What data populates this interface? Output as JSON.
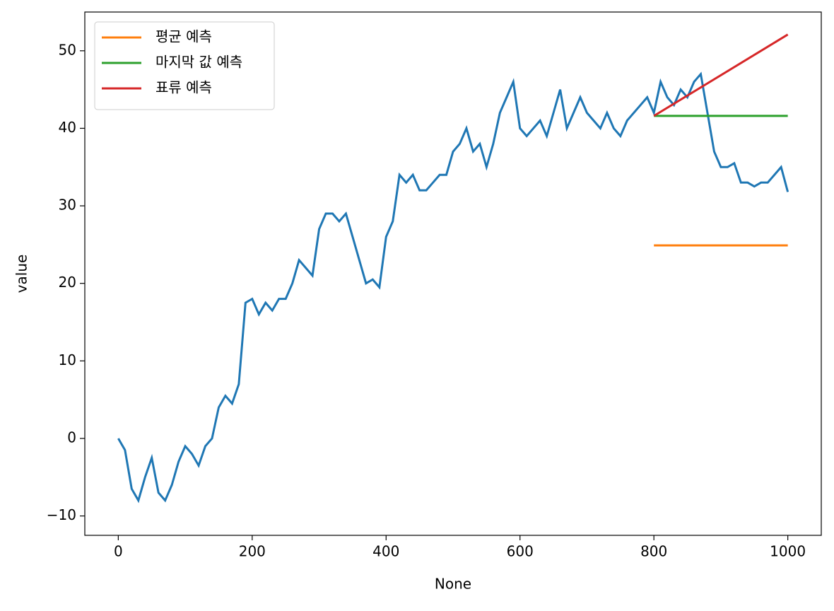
{
  "chart_data": {
    "type": "line",
    "x_label": "None",
    "y_label": "value",
    "xlim": [
      -50,
      1050
    ],
    "ylim": [
      -12.5,
      55
    ],
    "xticks": [
      0,
      200,
      400,
      600,
      800,
      1000
    ],
    "yticks": [
      {
        "value": -10,
        "label": "−10"
      },
      0,
      10,
      20,
      30,
      40,
      50
    ],
    "grid": false,
    "legend": "upper-left",
    "series": [
      {
        "color": "#1f77b4",
        "x": [
          0,
          10,
          20,
          30,
          40,
          50,
          60,
          70,
          80,
          90,
          100,
          110,
          120,
          130,
          140,
          150,
          160,
          170,
          180,
          190,
          200,
          210,
          220,
          230,
          240,
          250,
          260,
          270,
          280,
          290,
          300,
          310,
          320,
          330,
          340,
          350,
          360,
          370,
          380,
          390,
          400,
          410,
          420,
          430,
          440,
          450,
          460,
          470,
          480,
          490,
          500,
          510,
          520,
          530,
          540,
          550,
          560,
          570,
          580,
          590,
          600,
          610,
          620,
          630,
          640,
          650,
          660,
          670,
          680,
          690,
          700,
          710,
          720,
          730,
          740,
          750,
          760,
          770,
          780,
          790,
          800,
          810,
          820,
          830,
          840,
          850,
          860,
          870,
          880,
          890,
          900,
          910,
          920,
          930,
          940,
          950,
          960,
          970,
          980,
          990,
          1000
        ],
        "values": [
          0,
          -1.5,
          -6.5,
          -8,
          -5,
          -2.5,
          -7,
          -8,
          -6,
          -3,
          -1,
          -2,
          -3.5,
          -1,
          0,
          4,
          5.5,
          4.5,
          7,
          17.5,
          18,
          16,
          17.5,
          16.5,
          18,
          18,
          20,
          23,
          22,
          21,
          27,
          29,
          29,
          28,
          29,
          26,
          23,
          20,
          20.5,
          19.5,
          26,
          28,
          34,
          33,
          34,
          32,
          32,
          33,
          34,
          34,
          37,
          38,
          40,
          37,
          38,
          35,
          38,
          42,
          44,
          46,
          40,
          39,
          40,
          41,
          39,
          42,
          45,
          40,
          42,
          44,
          42,
          41,
          40,
          42,
          40,
          39,
          41,
          42,
          43,
          44,
          42,
          46,
          44,
          43,
          45,
          44,
          46,
          47,
          42,
          37,
          35,
          35,
          35.5,
          33,
          33,
          32.5,
          33,
          33,
          34,
          35,
          31.8
        ]
      },
      {
        "name": "평균 예측",
        "color": "#ff7f0e",
        "x": [
          800,
          1000
        ],
        "values": [
          24.9,
          24.9
        ]
      },
      {
        "name": "마지막 값 예측",
        "color": "#2ca02c",
        "x": [
          800,
          1000
        ],
        "values": [
          41.6,
          41.6
        ]
      },
      {
        "name": "표류 예측",
        "color": "#d62728",
        "x": [
          800,
          1000
        ],
        "values": [
          41.6,
          52.1
        ]
      }
    ]
  }
}
